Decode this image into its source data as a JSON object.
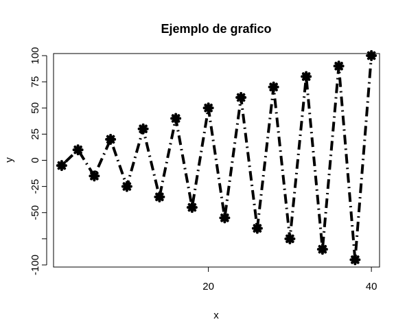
{
  "chart_data": {
    "type": "line",
    "title": "Ejemplo de grafico",
    "xlabel": "x",
    "ylabel": "y",
    "xlim": [
      1,
      41
    ],
    "ylim": [
      -102,
      102
    ],
    "x_ticks": [
      20,
      40
    ],
    "y_ticks": [
      100,
      75,
      50,
      25,
      0,
      -25,
      -50,
      -75,
      -100
    ],
    "y_tick_labels": [
      "100",
      "75",
      "50",
      "25",
      "0",
      "-25",
      "-50",
      "",
      "-100"
    ],
    "grid": false,
    "legend": "none",
    "line_style": "dot-dash",
    "point_symbol": "asterisk",
    "color": "#000000",
    "series": [
      {
        "x": [
          2,
          4,
          6,
          8,
          10,
          12,
          14,
          16,
          18,
          20,
          22,
          24,
          26,
          28,
          30,
          32,
          34,
          36,
          38,
          40
        ],
        "values": [
          -5,
          10,
          -15,
          20,
          -25,
          30,
          -35,
          40,
          -45,
          50,
          -55,
          60,
          -65,
          70,
          -75,
          80,
          -85,
          90,
          -95,
          100
        ]
      }
    ]
  }
}
